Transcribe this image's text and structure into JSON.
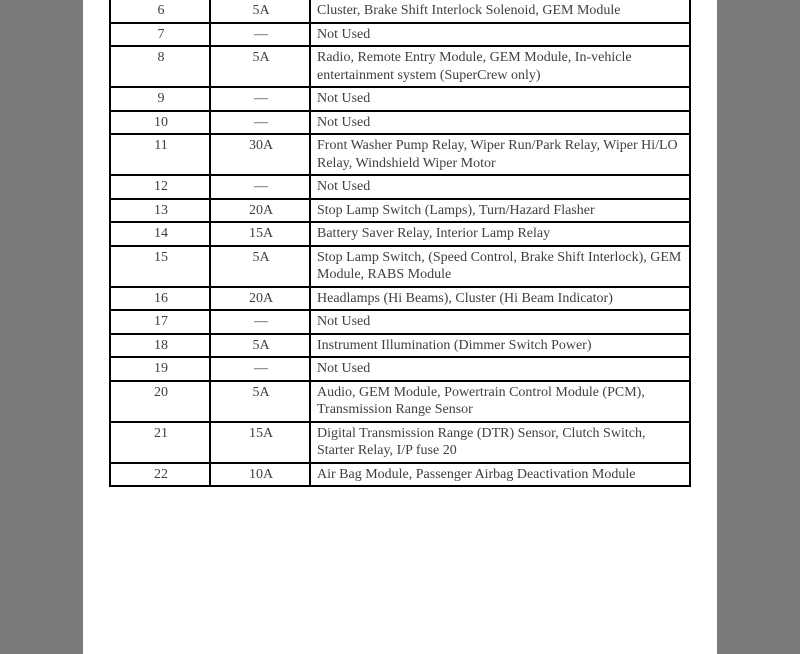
{
  "table": {
    "rows": [
      {
        "num": "6",
        "amp": "5A",
        "desc": "Cluster, Brake Shift Interlock Solenoid, GEM Module"
      },
      {
        "num": "7",
        "amp": "—",
        "desc": "Not Used"
      },
      {
        "num": "8",
        "amp": "5A",
        "desc": "Radio, Remote Entry Module, GEM Module, In-vehicle entertainment system  (SuperCrew only)"
      },
      {
        "num": "9",
        "amp": "—",
        "desc": "Not Used"
      },
      {
        "num": "10",
        "amp": "—",
        "desc": "Not Used"
      },
      {
        "num": "11",
        "amp": "30A",
        "desc": "Front Washer Pump Relay, Wiper Run/Park Relay, Wiper Hi/LO Relay, Windshield Wiper Motor"
      },
      {
        "num": "12",
        "amp": "—",
        "desc": "Not Used"
      },
      {
        "num": "13",
        "amp": "20A",
        "desc": "Stop Lamp Switch (Lamps), Turn/Hazard Flasher"
      },
      {
        "num": "14",
        "amp": "15A",
        "desc": "Battery Saver Relay, Interior Lamp Relay"
      },
      {
        "num": "15",
        "amp": "5A",
        "desc": "Stop Lamp Switch, (Speed Control, Brake Shift Interlock), GEM Module, RABS Module"
      },
      {
        "num": "16",
        "amp": "20A",
        "desc": "Headlamps (Hi Beams), Cluster (Hi Beam Indicator)"
      },
      {
        "num": "17",
        "amp": "—",
        "desc": "Not Used"
      },
      {
        "num": "18",
        "amp": "5A",
        "desc": "Instrument Illumination (Dimmer Switch Power)"
      },
      {
        "num": "19",
        "amp": "—",
        "desc": "Not Used"
      },
      {
        "num": "20",
        "amp": "5A",
        "desc": "Audio, GEM Module, Powertrain Control Module (PCM), Transmission Range Sensor"
      },
      {
        "num": "21",
        "amp": "15A",
        "desc": "Digital Transmission Range (DTR) Sensor, Clutch Switch, Starter Relay, I/P fuse 20"
      },
      {
        "num": "22",
        "amp": "10A",
        "desc": "Air Bag Module, Passenger Airbag Deactivation Module"
      }
    ],
    "colors": {
      "page_bg": "#ffffff",
      "outer_bg": "#7a7a7a",
      "text": "#3f3f3f",
      "border": "#000000"
    },
    "font_size_pt": 14
  }
}
